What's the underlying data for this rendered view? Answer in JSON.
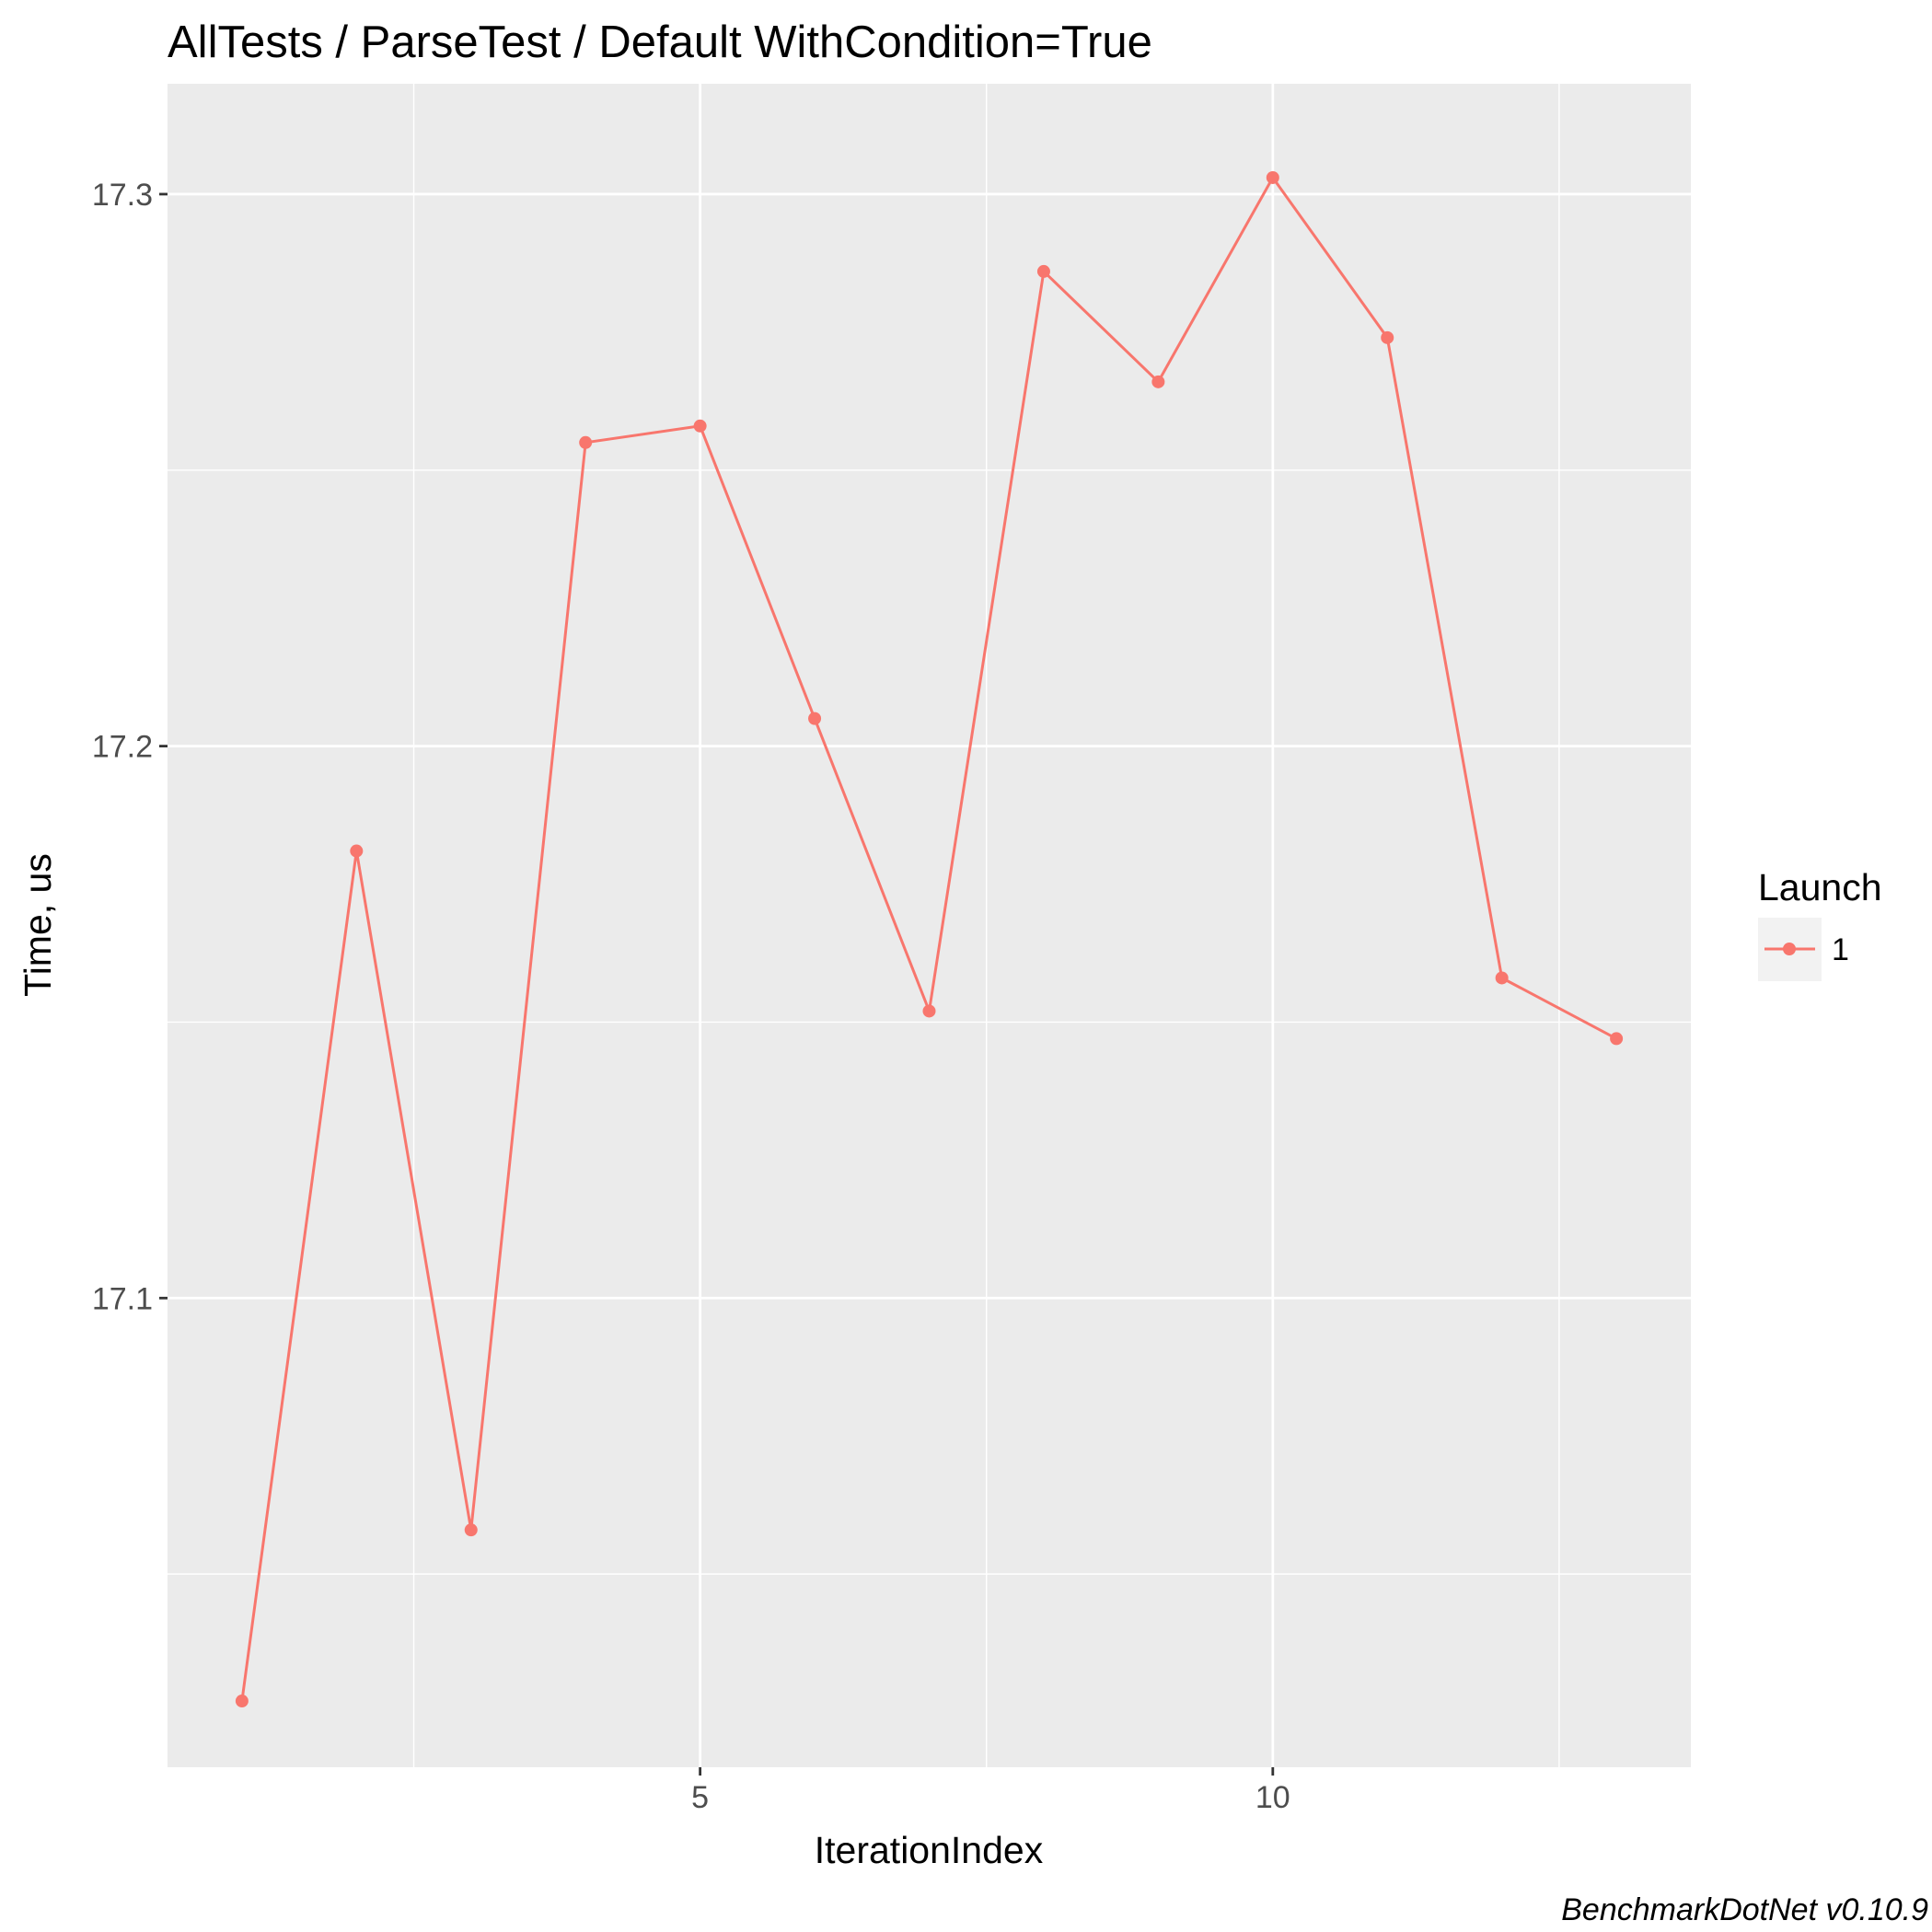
{
  "chart_data": {
    "type": "line",
    "title": "AllTests / ParseTest / Default WithCondition=True",
    "xlabel": "IterationIndex",
    "ylabel": "Time, us",
    "caption": "BenchmarkDotNet v0.10.9",
    "xlim": [
      0.35,
      13.65
    ],
    "ylim": [
      17.015,
      17.32
    ],
    "x_major_ticks": [
      5,
      10
    ],
    "x_minor_ticks": [
      2.5,
      7.5,
      12.5
    ],
    "x_tick_labels": [
      "5",
      "10"
    ],
    "y_major_ticks": [
      17.1,
      17.2,
      17.3
    ],
    "y_minor_ticks": [
      17.05,
      17.15,
      17.25
    ],
    "y_tick_labels": [
      "17.1",
      "17.2",
      "17.3"
    ],
    "grid": true,
    "legend": {
      "title": "Launch",
      "position": "right",
      "entries": [
        "1"
      ]
    },
    "series": [
      {
        "name": "1",
        "color": "#F8766D",
        "x": [
          1,
          2,
          3,
          4,
          5,
          6,
          7,
          8,
          9,
          10,
          11,
          12,
          13
        ],
        "values": [
          17.027,
          17.181,
          17.058,
          17.255,
          17.258,
          17.205,
          17.152,
          17.286,
          17.266,
          17.303,
          17.274,
          17.158,
          17.147
        ]
      }
    ]
  }
}
